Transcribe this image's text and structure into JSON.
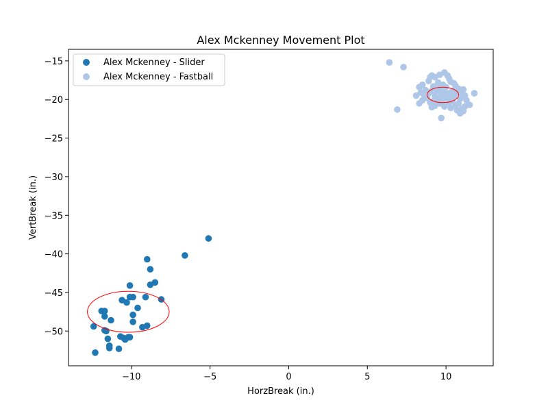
{
  "chart_data": {
    "type": "scatter",
    "title": "Alex Mckenney Movement Plot",
    "xlabel": "HorzBreak (in.)",
    "ylabel": "VertBreak (in.)",
    "xlim": [
      -14,
      13
    ],
    "ylim": [
      -54.5,
      -13.5
    ],
    "x_ticks": [
      -10,
      -5,
      0,
      5,
      10
    ],
    "y_ticks": [
      -15,
      -20,
      -25,
      -30,
      -35,
      -40,
      -45,
      -50
    ],
    "grid": false,
    "legend_position": "top-left",
    "series": [
      {
        "name": "Alex Mckenney - Slider",
        "color": "#1f77b4",
        "points": [
          [
            -5.1,
            -38.0
          ],
          [
            -6.6,
            -40.2
          ],
          [
            -9.0,
            -40.7
          ],
          [
            -8.8,
            -42.0
          ],
          [
            -8.5,
            -43.7
          ],
          [
            -8.8,
            -44.0
          ],
          [
            -10.1,
            -44.1
          ],
          [
            -8.1,
            -45.9
          ],
          [
            -9.1,
            -45.6
          ],
          [
            -10.1,
            -45.6
          ],
          [
            -9.9,
            -45.6
          ],
          [
            -10.6,
            -46.0
          ],
          [
            -10.3,
            -46.3
          ],
          [
            -9.6,
            -47.0
          ],
          [
            -11.9,
            -47.4
          ],
          [
            -11.7,
            -47.4
          ],
          [
            -9.9,
            -47.9
          ],
          [
            -11.7,
            -48.1
          ],
          [
            -11.3,
            -48.6
          ],
          [
            -9.9,
            -48.8
          ],
          [
            -12.4,
            -49.4
          ],
          [
            -9.0,
            -49.3
          ],
          [
            -9.3,
            -49.5
          ],
          [
            -11.7,
            -49.9
          ],
          [
            -11.6,
            -50.0
          ],
          [
            -10.7,
            -50.7
          ],
          [
            -10.2,
            -50.8
          ],
          [
            -10.5,
            -50.9
          ],
          [
            -10.1,
            -50.8
          ],
          [
            -11.5,
            -51.0
          ],
          [
            -10.4,
            -51.1
          ],
          [
            -11.4,
            -51.9
          ],
          [
            -11.4,
            -52.2
          ],
          [
            -10.8,
            -52.3
          ],
          [
            -12.3,
            -52.8
          ]
        ],
        "ellipse": {
          "center": [
            -10.2,
            -47.5
          ],
          "width": 5.2,
          "height": 5.3
        }
      },
      {
        "name": "Alex Mckenney - Fastball",
        "color": "#aec7e8",
        "points": [
          [
            6.4,
            -15.2
          ],
          [
            7.3,
            -15.8
          ],
          [
            9.9,
            -16.5
          ],
          [
            9.6,
            -16.8
          ],
          [
            10.1,
            -16.9
          ],
          [
            9.0,
            -17.1
          ],
          [
            9.3,
            -17.1
          ],
          [
            9.1,
            -16.9
          ],
          [
            10.2,
            -17.3
          ],
          [
            8.9,
            -17.6
          ],
          [
            10.3,
            -17.7
          ],
          [
            10.5,
            -17.9
          ],
          [
            9.5,
            -17.8
          ],
          [
            8.5,
            -18.1
          ],
          [
            9.8,
            -18.1
          ],
          [
            10.6,
            -18.2
          ],
          [
            8.3,
            -18.4
          ],
          [
            9.2,
            -18.3
          ],
          [
            9.6,
            -18.5
          ],
          [
            10.0,
            -18.4
          ],
          [
            10.8,
            -18.6
          ],
          [
            11.1,
            -18.7
          ],
          [
            8.7,
            -18.8
          ],
          [
            9.1,
            -18.9
          ],
          [
            9.4,
            -18.9
          ],
          [
            9.9,
            -19.0
          ],
          [
            10.4,
            -18.9
          ],
          [
            8.4,
            -19.1
          ],
          [
            8.9,
            -19.2
          ],
          [
            9.7,
            -19.3
          ],
          [
            10.2,
            -19.2
          ],
          [
            10.7,
            -19.1
          ],
          [
            11.0,
            -19.2
          ],
          [
            11.8,
            -19.2
          ],
          [
            8.1,
            -19.5
          ],
          [
            8.6,
            -19.4
          ],
          [
            9.3,
            -19.6
          ],
          [
            10.0,
            -19.5
          ],
          [
            10.5,
            -19.6
          ],
          [
            11.2,
            -19.5
          ],
          [
            8.8,
            -19.8
          ],
          [
            9.5,
            -19.9
          ],
          [
            10.1,
            -19.8
          ],
          [
            10.9,
            -19.9
          ],
          [
            8.5,
            -20.1
          ],
          [
            9.2,
            -20.2
          ],
          [
            9.8,
            -20.1
          ],
          [
            10.4,
            -20.2
          ],
          [
            11.3,
            -20.1
          ],
          [
            8.3,
            -20.5
          ],
          [
            9.0,
            -20.4
          ],
          [
            9.6,
            -20.5
          ],
          [
            10.2,
            -20.4
          ],
          [
            10.8,
            -20.5
          ],
          [
            11.5,
            -20.7
          ],
          [
            9.3,
            -20.8
          ],
          [
            9.9,
            -20.9
          ],
          [
            10.6,
            -20.8
          ],
          [
            11.2,
            -20.9
          ],
          [
            9.1,
            -21.0
          ],
          [
            10.3,
            -21.1
          ],
          [
            11.0,
            -21.2
          ],
          [
            10.7,
            -21.4
          ],
          [
            11.1,
            -21.5
          ],
          [
            10.9,
            -21.8
          ],
          [
            6.9,
            -21.3
          ],
          [
            9.7,
            -22.4
          ]
        ],
        "ellipse": {
          "center": [
            9.8,
            -19.4
          ],
          "width": 2.0,
          "height": 2.0
        }
      }
    ]
  }
}
